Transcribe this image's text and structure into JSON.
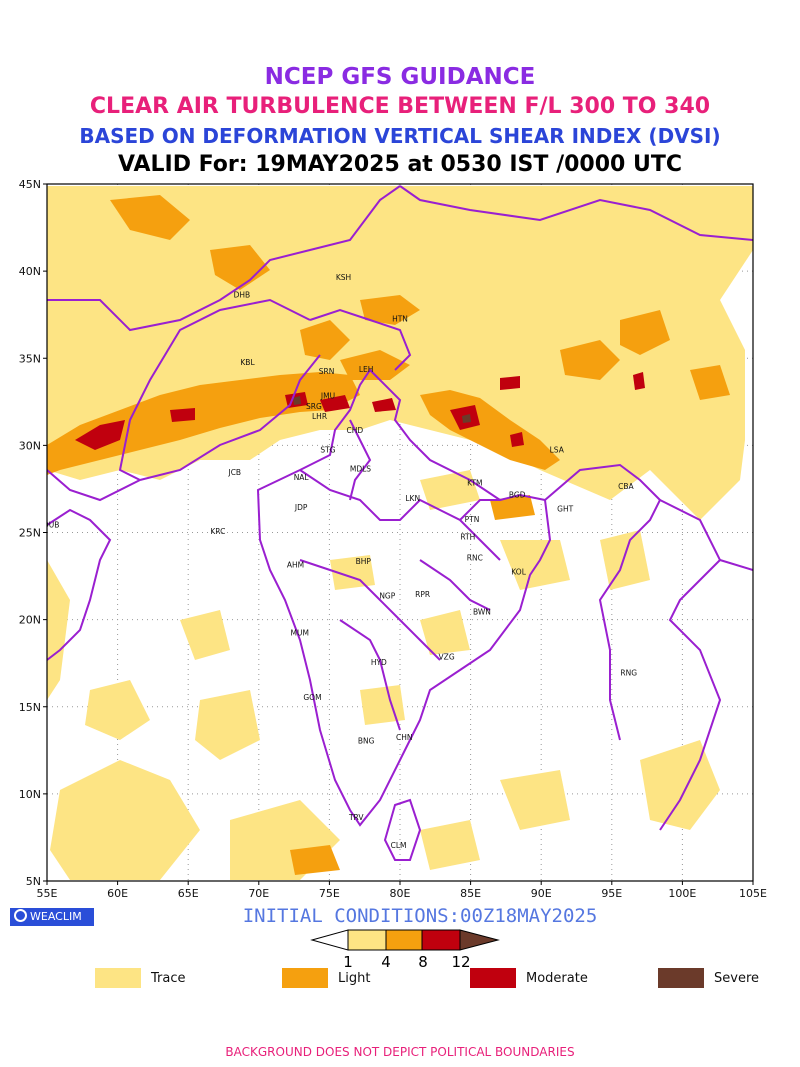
{
  "titles": {
    "line1": "NCEP GFS GUIDANCE",
    "line2": "CLEAR AIR TURBULENCE BETWEEN F/L 300 TO 340",
    "line3": "BASED ON DEFORMATION VERTICAL SHEAR INDEX (DVSI)",
    "line4": "VALID For: 19MAY2025 at 0530 IST /0000 UTC"
  },
  "colors": {
    "line1": "#8a2be2",
    "line2": "#e8207a",
    "line3": "#2b45d8",
    "line4": "#000000",
    "boundary": "#9a1fd0",
    "trace": "#fde484",
    "light": "#f5a00f",
    "moderate": "#c0000e",
    "severe": "#6b3a2a",
    "init": "#5577e0",
    "disclaimer": "#e8207a"
  },
  "axes": {
    "lon_ticks": [
      "55E",
      "60E",
      "65E",
      "70E",
      "75E",
      "80E",
      "85E",
      "90E",
      "95E",
      "100E",
      "105E"
    ],
    "lat_ticks": [
      "5N",
      "10N",
      "15N",
      "20N",
      "25N",
      "30N",
      "35N",
      "40N",
      "45N"
    ],
    "lon_range": [
      55,
      105
    ],
    "lat_range": [
      5,
      45
    ]
  },
  "stations": [
    {
      "name": "DHB",
      "lon": 68.8,
      "lat": 38.5
    },
    {
      "name": "KSH",
      "lon": 76.0,
      "lat": 39.5
    },
    {
      "name": "HTN",
      "lon": 80.0,
      "lat": 37.1
    },
    {
      "name": "KBL",
      "lon": 69.2,
      "lat": 34.6
    },
    {
      "name": "LEH",
      "lon": 77.6,
      "lat": 34.2
    },
    {
      "name": "SRN",
      "lon": 74.8,
      "lat": 34.1
    },
    {
      "name": "JMU",
      "lon": 74.9,
      "lat": 32.7
    },
    {
      "name": "SRG",
      "lon": 73.9,
      "lat": 32.1
    },
    {
      "name": "LHR",
      "lon": 74.3,
      "lat": 31.5
    },
    {
      "name": "CHD",
      "lon": 76.8,
      "lat": 30.7
    },
    {
      "name": "STG",
      "lon": 74.9,
      "lat": 29.6
    },
    {
      "name": "LSA",
      "lon": 91.1,
      "lat": 29.6
    },
    {
      "name": "JCB",
      "lon": 68.3,
      "lat": 28.3
    },
    {
      "name": "NAL",
      "lon": 73.0,
      "lat": 28.0
    },
    {
      "name": "MDLS",
      "lon": 77.2,
      "lat": 28.5
    },
    {
      "name": "KTM",
      "lon": 85.3,
      "lat": 27.7
    },
    {
      "name": "BGD",
      "lon": 88.3,
      "lat": 27.0
    },
    {
      "name": "CBA",
      "lon": 96.0,
      "lat": 27.5
    },
    {
      "name": "GHT",
      "lon": 91.7,
      "lat": 26.2
    },
    {
      "name": "JDP",
      "lon": 73.0,
      "lat": 26.3
    },
    {
      "name": "LKN",
      "lon": 80.9,
      "lat": 26.8
    },
    {
      "name": "PTN",
      "lon": 85.1,
      "lat": 25.6
    },
    {
      "name": "DUB",
      "lon": 55.3,
      "lat": 25.3
    },
    {
      "name": "KRC",
      "lon": 67.1,
      "lat": 24.9
    },
    {
      "name": "RTH",
      "lon": 84.8,
      "lat": 24.6
    },
    {
      "name": "AHM",
      "lon": 72.6,
      "lat": 23.0
    },
    {
      "name": "BHP",
      "lon": 77.4,
      "lat": 23.2
    },
    {
      "name": "RNC",
      "lon": 85.3,
      "lat": 23.4
    },
    {
      "name": "KOL",
      "lon": 88.4,
      "lat": 22.6
    },
    {
      "name": "NGP",
      "lon": 79.1,
      "lat": 21.2
    },
    {
      "name": "RPR",
      "lon": 81.6,
      "lat": 21.3
    },
    {
      "name": "BWN",
      "lon": 85.8,
      "lat": 20.3
    },
    {
      "name": "MUM",
      "lon": 72.9,
      "lat": 19.1
    },
    {
      "name": "HYD",
      "lon": 78.5,
      "lat": 17.4
    },
    {
      "name": "VZG",
      "lon": 83.3,
      "lat": 17.7
    },
    {
      "name": "RNG",
      "lon": 96.2,
      "lat": 16.8
    },
    {
      "name": "GOM",
      "lon": 73.8,
      "lat": 15.4
    },
    {
      "name": "CHN",
      "lon": 80.3,
      "lat": 13.1
    },
    {
      "name": "BNG",
      "lon": 77.6,
      "lat": 12.9
    },
    {
      "name": "TRV",
      "lon": 76.9,
      "lat": 8.5
    },
    {
      "name": "CLM",
      "lon": 79.9,
      "lat": 6.9
    }
  ],
  "initial_conditions": "INITIAL CONDITIONS:00Z18MAY2025",
  "logo_text": "WEACLIM",
  "colorbar": {
    "labels": [
      "1",
      "4",
      "8",
      "12"
    ]
  },
  "legend": [
    {
      "label": "Trace",
      "color": "#fde484"
    },
    {
      "label": "Light",
      "color": "#f5a00f"
    },
    {
      "label": "Moderate",
      "color": "#c0000e"
    },
    {
      "label": "Severe",
      "color": "#6b3a2a"
    }
  ],
  "disclaimer": "BACKGROUND DOES NOT DEPICT POLITICAL BOUNDARIES"
}
